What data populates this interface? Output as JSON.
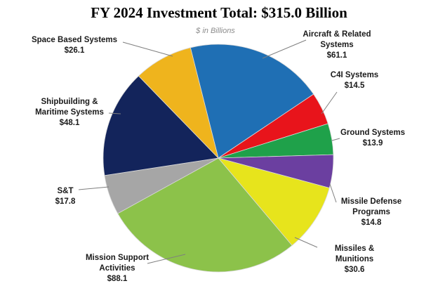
{
  "chart_data": {
    "type": "pie",
    "title": "FY 2024 Investment Total: $315.0 Billion",
    "subtitle": "$ in Billions",
    "slices": [
      {
        "name": "Aircraft & Related Systems",
        "lines": [
          "Aircraft & Related",
          "Systems"
        ],
        "value_label": "$61.1",
        "value": 61.1,
        "color": "#1F6FB4"
      },
      {
        "name": "C4I Systems",
        "lines": [
          "C4I Systems"
        ],
        "value_label": "$14.5",
        "value": 14.5,
        "color": "#E8141B"
      },
      {
        "name": "Ground Systems",
        "lines": [
          "Ground Systems"
        ],
        "value_label": "$13.9",
        "value": 13.9,
        "color": "#1FA14A"
      },
      {
        "name": "Missile Defense Programs",
        "lines": [
          "Missile Defense",
          "Programs"
        ],
        "value_label": "$14.8",
        "value": 14.8,
        "color": "#6B3FA0"
      },
      {
        "name": "Missiles & Munitions",
        "lines": [
          "Missiles &",
          "Munitions"
        ],
        "value_label": "$30.6",
        "value": 30.6,
        "color": "#E7E41C"
      },
      {
        "name": "Mission Support Activities",
        "lines": [
          "Mission Support",
          "Activities"
        ],
        "value_label": "$88.1",
        "value": 88.1,
        "color": "#8CC24A"
      },
      {
        "name": "S&T",
        "lines": [
          "S&T"
        ],
        "value_label": "$17.8",
        "value": 17.8,
        "color": "#A6A6A6"
      },
      {
        "name": "Shipbuilding & Maritime Systems",
        "lines": [
          "Shipbuilding &",
          "Maritime Systems"
        ],
        "value_label": "$48.1",
        "value": 48.1,
        "color": "#13245B"
      },
      {
        "name": "Space Based Systems",
        "lines": [
          "Space Based Systems"
        ],
        "value_label": "$26.1",
        "value": 26.1,
        "color": "#EFB41D"
      }
    ]
  }
}
